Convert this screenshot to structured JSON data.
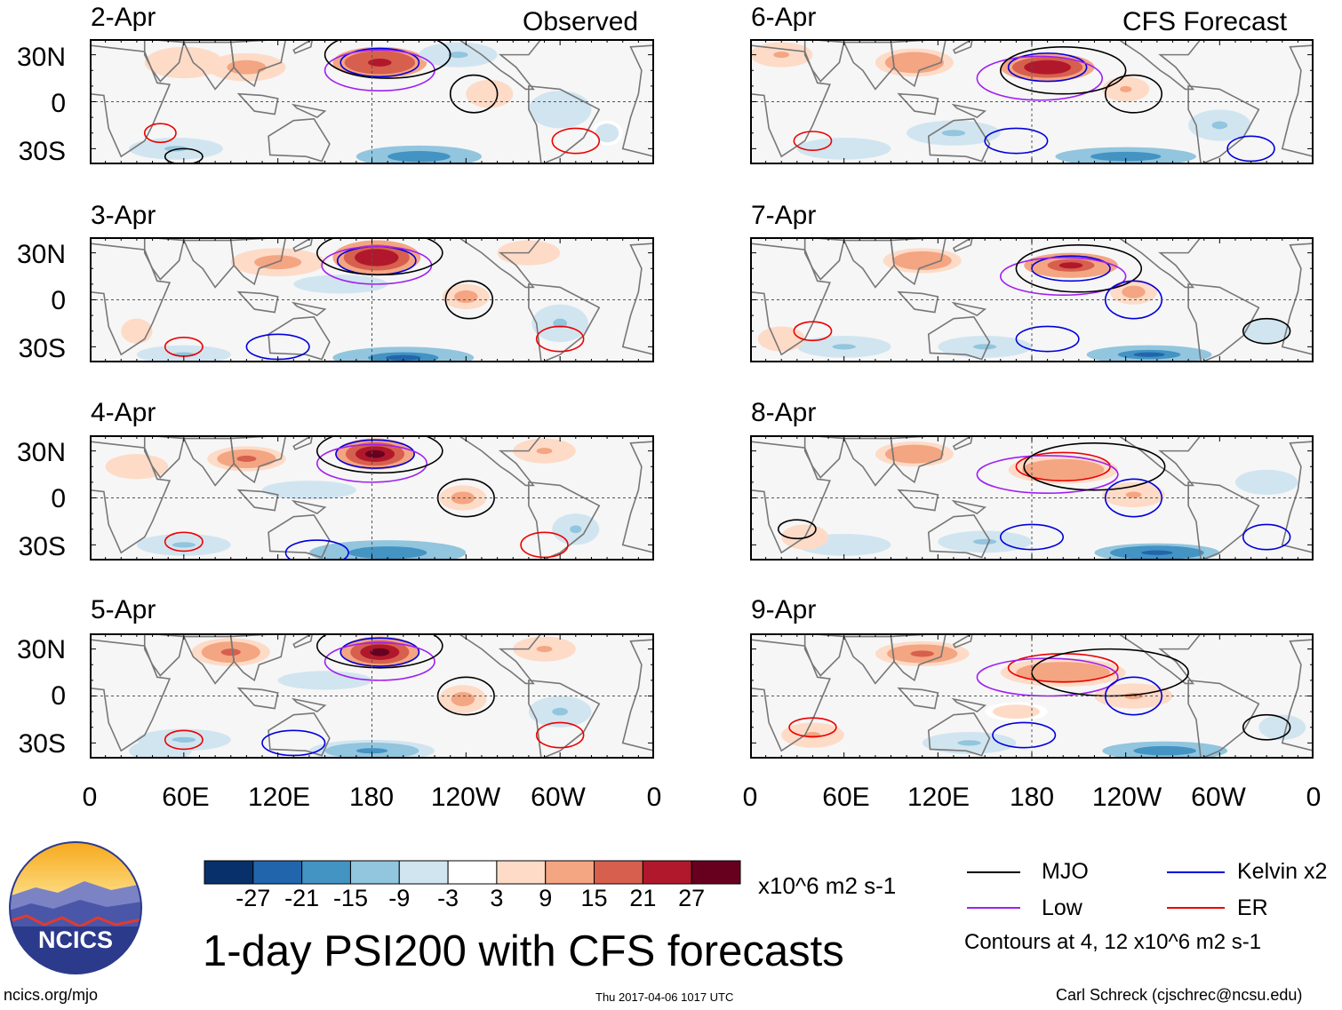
{
  "chart_data": {
    "type": "heatmap",
    "title": "1-day PSI200 with CFS forecasts",
    "units": "x10^6 m2 s-1",
    "lat_labels": [
      "30N",
      "0",
      "30S"
    ],
    "lon_labels": [
      "0",
      "60E",
      "120E",
      "180",
      "120W",
      "60W",
      "0"
    ],
    "observed_label": "Observed",
    "forecast_label": "CFS Forecast",
    "panels_observed": [
      "2-Apr",
      "3-Apr",
      "4-Apr",
      "5-Apr"
    ],
    "panels_forecast": [
      "6-Apr",
      "7-Apr",
      "8-Apr",
      "9-Apr"
    ],
    "colorbar_ticks": [
      "-27",
      "-21",
      "-15",
      "-9",
      "-3",
      "3",
      "9",
      "15",
      "21",
      "27"
    ],
    "colorbar_colors": [
      "#08306b",
      "#2166ac",
      "#4393c3",
      "#92c5de",
      "#d1e5f0",
      "#ffffff",
      "#fddbc7",
      "#f4a582",
      "#d6604d",
      "#b2182b",
      "#67001f"
    ],
    "legend": [
      {
        "name": "MJO",
        "color": "#000000"
      },
      {
        "name": "Kelvin x2",
        "color": "#0000dd"
      },
      {
        "name": "Low",
        "color": "#a020f0"
      },
      {
        "name": "ER",
        "color": "#ee0000"
      }
    ],
    "contour_note": "Contours at 4, 12 x10^6 m2 s-1"
  },
  "logo_text": "NCICS",
  "footer": {
    "left": "ncics.org/mjo",
    "center": "Thu 2017-04-06 1017 UTC",
    "right": "Carl Schreck (cjschrec@ncsu.edu)"
  }
}
